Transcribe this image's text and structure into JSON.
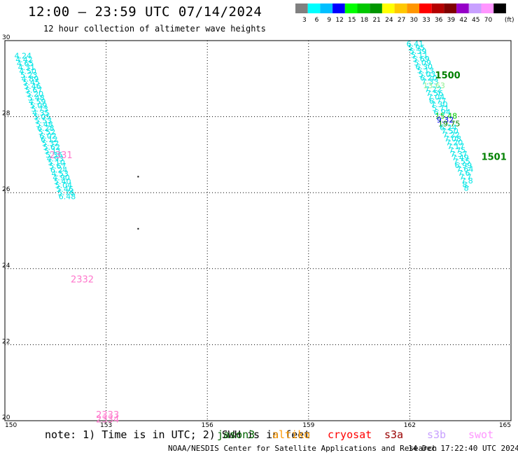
{
  "header": {
    "title": "12:00 — 23:59 UTC 07/14/2024",
    "subtitle": "12 hour collection of altimeter wave heights"
  },
  "legend": {
    "colors": [
      "#808080",
      "#00ffff",
      "#00bfff",
      "#0000ff",
      "#00ff00",
      "#00c800",
      "#009600",
      "#ffff00",
      "#ffc800",
      "#ff9600",
      "#ff0000",
      "#b40000",
      "#800000",
      "#9600c8",
      "#c8a0ff",
      "#ff96ff",
      "#000000"
    ],
    "labels": [
      "3",
      "6",
      "9",
      "12",
      "15",
      "18",
      "21",
      "24",
      "27",
      "30",
      "33",
      "36",
      "39",
      "42",
      "45",
      "70",
      "(ft)"
    ]
  },
  "chart_data": {
    "type": "scatter",
    "xlim": [
      150,
      165
    ],
    "ylim": [
      20,
      30
    ],
    "x_ticks": [
      "150",
      "153",
      "156",
      "159",
      "162",
      "165"
    ],
    "y_ticks": [
      "30",
      "28",
      "26",
      "24",
      "22",
      "20"
    ],
    "grid": true,
    "tracks": [
      {
        "color": "#00e5e5",
        "start": [
          150.28,
          29.6
        ],
        "step": [
          0.0355,
          -0.1
        ],
        "values": [
          "4.24",
          "4.42",
          "4.65",
          "4.31",
          "4.50",
          "5.23",
          "4.89",
          "5.45",
          "5.46",
          "5.67",
          "5.20",
          "5.48",
          "4.59",
          "5.09",
          "5.73",
          "4.35",
          "5.05",
          "5.53",
          "5.48",
          "6.28",
          "5.52",
          "6.02",
          "6.12",
          "5.32",
          "5.62",
          "5.11",
          "5.36",
          "4.93",
          "5.10",
          "5.67",
          "6.24",
          "4.53",
          "4.90",
          "5.40",
          "5.04",
          "5.46",
          "5.76",
          "6.48"
        ]
      },
      {
        "color": "#00e5e5",
        "start": [
          161.9,
          29.92
        ],
        "step": [
          0.0448,
          -0.1
        ],
        "values": [
          "6.41",
          "5.95",
          "5.39",
          "5.11",
          "5.69",
          "5.09",
          "6.30",
          "5.13",
          "5.03",
          "6.20",
          "7.33",
          "13.63",
          "7.22",
          "7.56",
          "7.04",
          "6.77",
          "7.30",
          "5.71",
          "6.94",
          "15.48",
          "9.32",
          "19.75",
          "6.24",
          "7.50",
          "7.22",
          "7.08",
          "7.20",
          "7.17",
          "7.75",
          "7.37",
          "7.49",
          "7.55",
          "6.99",
          "7.64",
          "7.6",
          "7.7",
          "7.8",
          "8.",
          "8"
        ]
      }
    ],
    "highlights": [
      {
        "index": 11,
        "color": "#90ee90"
      },
      {
        "index": 19,
        "color": "#00c800"
      },
      {
        "index": 20,
        "color": "#0000ff"
      },
      {
        "index": 21,
        "color": "#008000"
      }
    ],
    "track_labels": [
      {
        "text": "2331",
        "x": 151.32,
        "y": 27.0,
        "color": "#ff77cc"
      },
      {
        "text": "2332",
        "x": 151.95,
        "y": 23.73,
        "color": "#ff77cc"
      },
      {
        "text": "2333",
        "x": 152.7,
        "y": 20.17,
        "color": "#ff77cc"
      },
      {
        "text": "2334",
        "x": 152.7,
        "y": 20.05,
        "color": "#ff77cc"
      },
      {
        "text": "1500",
        "x": 162.75,
        "y": 29.1,
        "color": "#008000"
      },
      {
        "text": "1501",
        "x": 164.12,
        "y": 26.95,
        "color": "#008000"
      }
    ],
    "dots": [
      {
        "x": 153.95,
        "y": 26.42
      },
      {
        "x": 153.95,
        "y": 25.05
      }
    ]
  },
  "footer": {
    "note": "note: 1) Time is in UTC; 2) SWH is in feet",
    "satellites": [
      {
        "name": "jason3",
        "color": "#006400"
      },
      {
        "name": "altiko",
        "color": "#ff9900"
      },
      {
        "name": "cryosat",
        "color": "#ff0000"
      },
      {
        "name": "s3a",
        "color": "#990000"
      },
      {
        "name": "s3b",
        "color": "#c8a0ff"
      },
      {
        "name": "swot",
        "color": "#ff96ff"
      }
    ],
    "credit": "NOAA/NESDIS Center for Satellite Applications and Research",
    "timestamp": "14 Dec 17:22:40 UTC 2024"
  }
}
